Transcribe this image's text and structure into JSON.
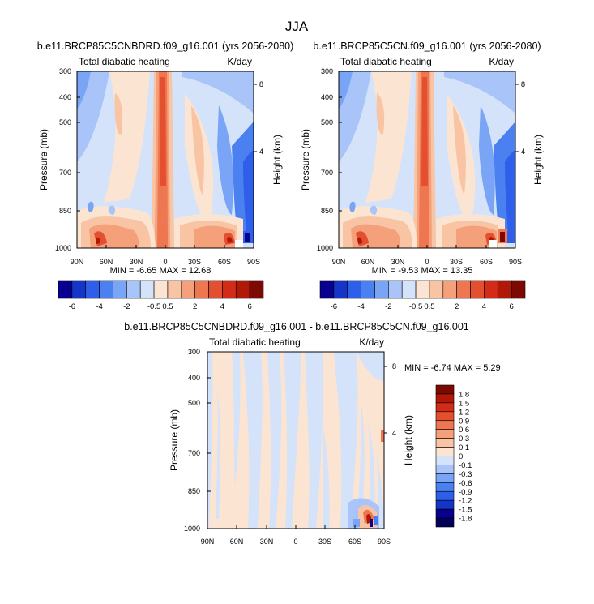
{
  "figure_title": "JJA",
  "panels": [
    {
      "id": "left",
      "title": "b.e11.BRCP85C5CNBDRD.f09_g16.001 (yrs 2056-2080)",
      "left_label": "Total diabatic heating",
      "right_label": "K/day",
      "ylabel": "Pressure (mb)",
      "ylabel_right": "Height (km)",
      "stats": "MIN =  -6.65   MAX =  12.68"
    },
    {
      "id": "right",
      "title": "b.e11.BRCP85C5CN.f09_g16.001 (yrs 2056-2080)",
      "left_label": "Total diabatic heating",
      "right_label": "K/day",
      "ylabel": "Pressure (mb)",
      "ylabel_right": "Height (km)",
      "stats": "MIN =  -9.53   MAX =  13.35"
    },
    {
      "id": "diff",
      "title": "b.e11.BRCP85C5CNBDRD.f09_g16.001 - b.e11.BRCP85C5CN.f09_g16.001",
      "left_label": "Total diabatic heating",
      "right_label": "K/day",
      "ylabel": "Pressure (mb)",
      "ylabel_right": "Height (km)",
      "stats": "MIN =  -6.74   MAX =   5.29"
    }
  ],
  "chart_data": [
    {
      "type": "heatmap",
      "panel": "left",
      "x_ticks": [
        "90N",
        "60N",
        "30N",
        "0",
        "30S",
        "60S",
        "90S"
      ],
      "x_values": [
        90,
        60,
        30,
        0,
        -30,
        -60,
        -90
      ],
      "y_ticks": [
        "300",
        "400",
        "500",
        "700",
        "850",
        "1000"
      ],
      "y_values": [
        300,
        400,
        500,
        700,
        850,
        1000
      ],
      "y_right_ticks": [
        "8",
        "4"
      ],
      "ylim": [
        1000,
        300
      ],
      "min": -6.65,
      "max": 12.68,
      "features": [
        {
          "x": 2,
          "p": 300,
          "p2": 1000,
          "value": 10,
          "desc": "deep tropical heating"
        },
        {
          "x": -78,
          "p": 520,
          "p2": 1000,
          "value": -4,
          "desc": "southern high-latitude cooling"
        },
        {
          "x": 80,
          "p": 950,
          "p2": 1000,
          "value": 6,
          "desc": "northern surface heating"
        }
      ]
    },
    {
      "type": "heatmap",
      "panel": "right",
      "x_ticks": [
        "90N",
        "60N",
        "30N",
        "0",
        "30S",
        "60S",
        "90S"
      ],
      "x_values": [
        90,
        60,
        30,
        0,
        -30,
        -60,
        -90
      ],
      "y_ticks": [
        "300",
        "400",
        "500",
        "700",
        "850",
        "1000"
      ],
      "y_values": [
        300,
        400,
        500,
        700,
        850,
        1000
      ],
      "y_right_ticks": [
        "8",
        "4"
      ],
      "ylim": [
        1000,
        300
      ],
      "min": -9.53,
      "max": 13.35,
      "features": [
        {
          "x": 2,
          "p": 300,
          "p2": 1000,
          "value": 10,
          "desc": "deep tropical heating"
        },
        {
          "x": -78,
          "p": 520,
          "p2": 1000,
          "value": -4,
          "desc": "southern high-latitude cooling"
        },
        {
          "x": 80,
          "p": 950,
          "p2": 1000,
          "value": 6,
          "desc": "northern surface heating"
        }
      ]
    },
    {
      "type": "heatmap",
      "panel": "diff",
      "x_ticks": [
        "90N",
        "60N",
        "30N",
        "0",
        "30S",
        "60S",
        "90S"
      ],
      "x_values": [
        90,
        60,
        30,
        0,
        -30,
        -60,
        -90
      ],
      "y_ticks": [
        "300",
        "400",
        "500",
        "700",
        "850",
        "1000"
      ],
      "y_values": [
        300,
        400,
        500,
        700,
        850,
        1000
      ],
      "y_right_ticks": [
        "8",
        "4"
      ],
      "ylim": [
        1000,
        300
      ],
      "min": -6.74,
      "max": 5.29,
      "features": [
        {
          "x": -85,
          "p": 960,
          "p2": 1000,
          "value": -1.8,
          "desc": "near-surface anomaly near 90S"
        },
        {
          "x": -80,
          "p": 960,
          "p2": 1000,
          "value": 1.5,
          "desc": "near-surface anomaly near 90S"
        }
      ]
    }
  ],
  "colorbars": {
    "top": {
      "labels": [
        "-6",
        "-4",
        "-2",
        "-0.5",
        "0.5",
        "2",
        "4",
        "6"
      ],
      "colors": [
        "#08008f",
        "#1535c8",
        "#2e5fea",
        "#4a80f0",
        "#7aa4f5",
        "#a9c4f8",
        "#d4e3fa",
        "#fbe4d2",
        "#f8c4a3",
        "#f4a07a",
        "#ee7650",
        "#e44f30",
        "#d22c18",
        "#b11808",
        "#7d0a02"
      ]
    },
    "diff": {
      "labels": [
        "1.8",
        "1.5",
        "1.2",
        "0.9",
        "0.6",
        "0.3",
        "0.1",
        "0",
        "-0.1",
        "-0.3",
        "-0.6",
        "-0.9",
        "-1.2",
        "-1.5",
        "-1.8"
      ],
      "colors": [
        "#7d0a02",
        "#b11808",
        "#d22c18",
        "#e44f30",
        "#ee7650",
        "#f4a07a",
        "#f8c4a3",
        "#fbe4d2",
        "#d4e3fa",
        "#a9c4f8",
        "#7aa4f5",
        "#4a80f0",
        "#2e5fea",
        "#1535c8",
        "#08008f",
        "#03005a"
      ]
    }
  }
}
